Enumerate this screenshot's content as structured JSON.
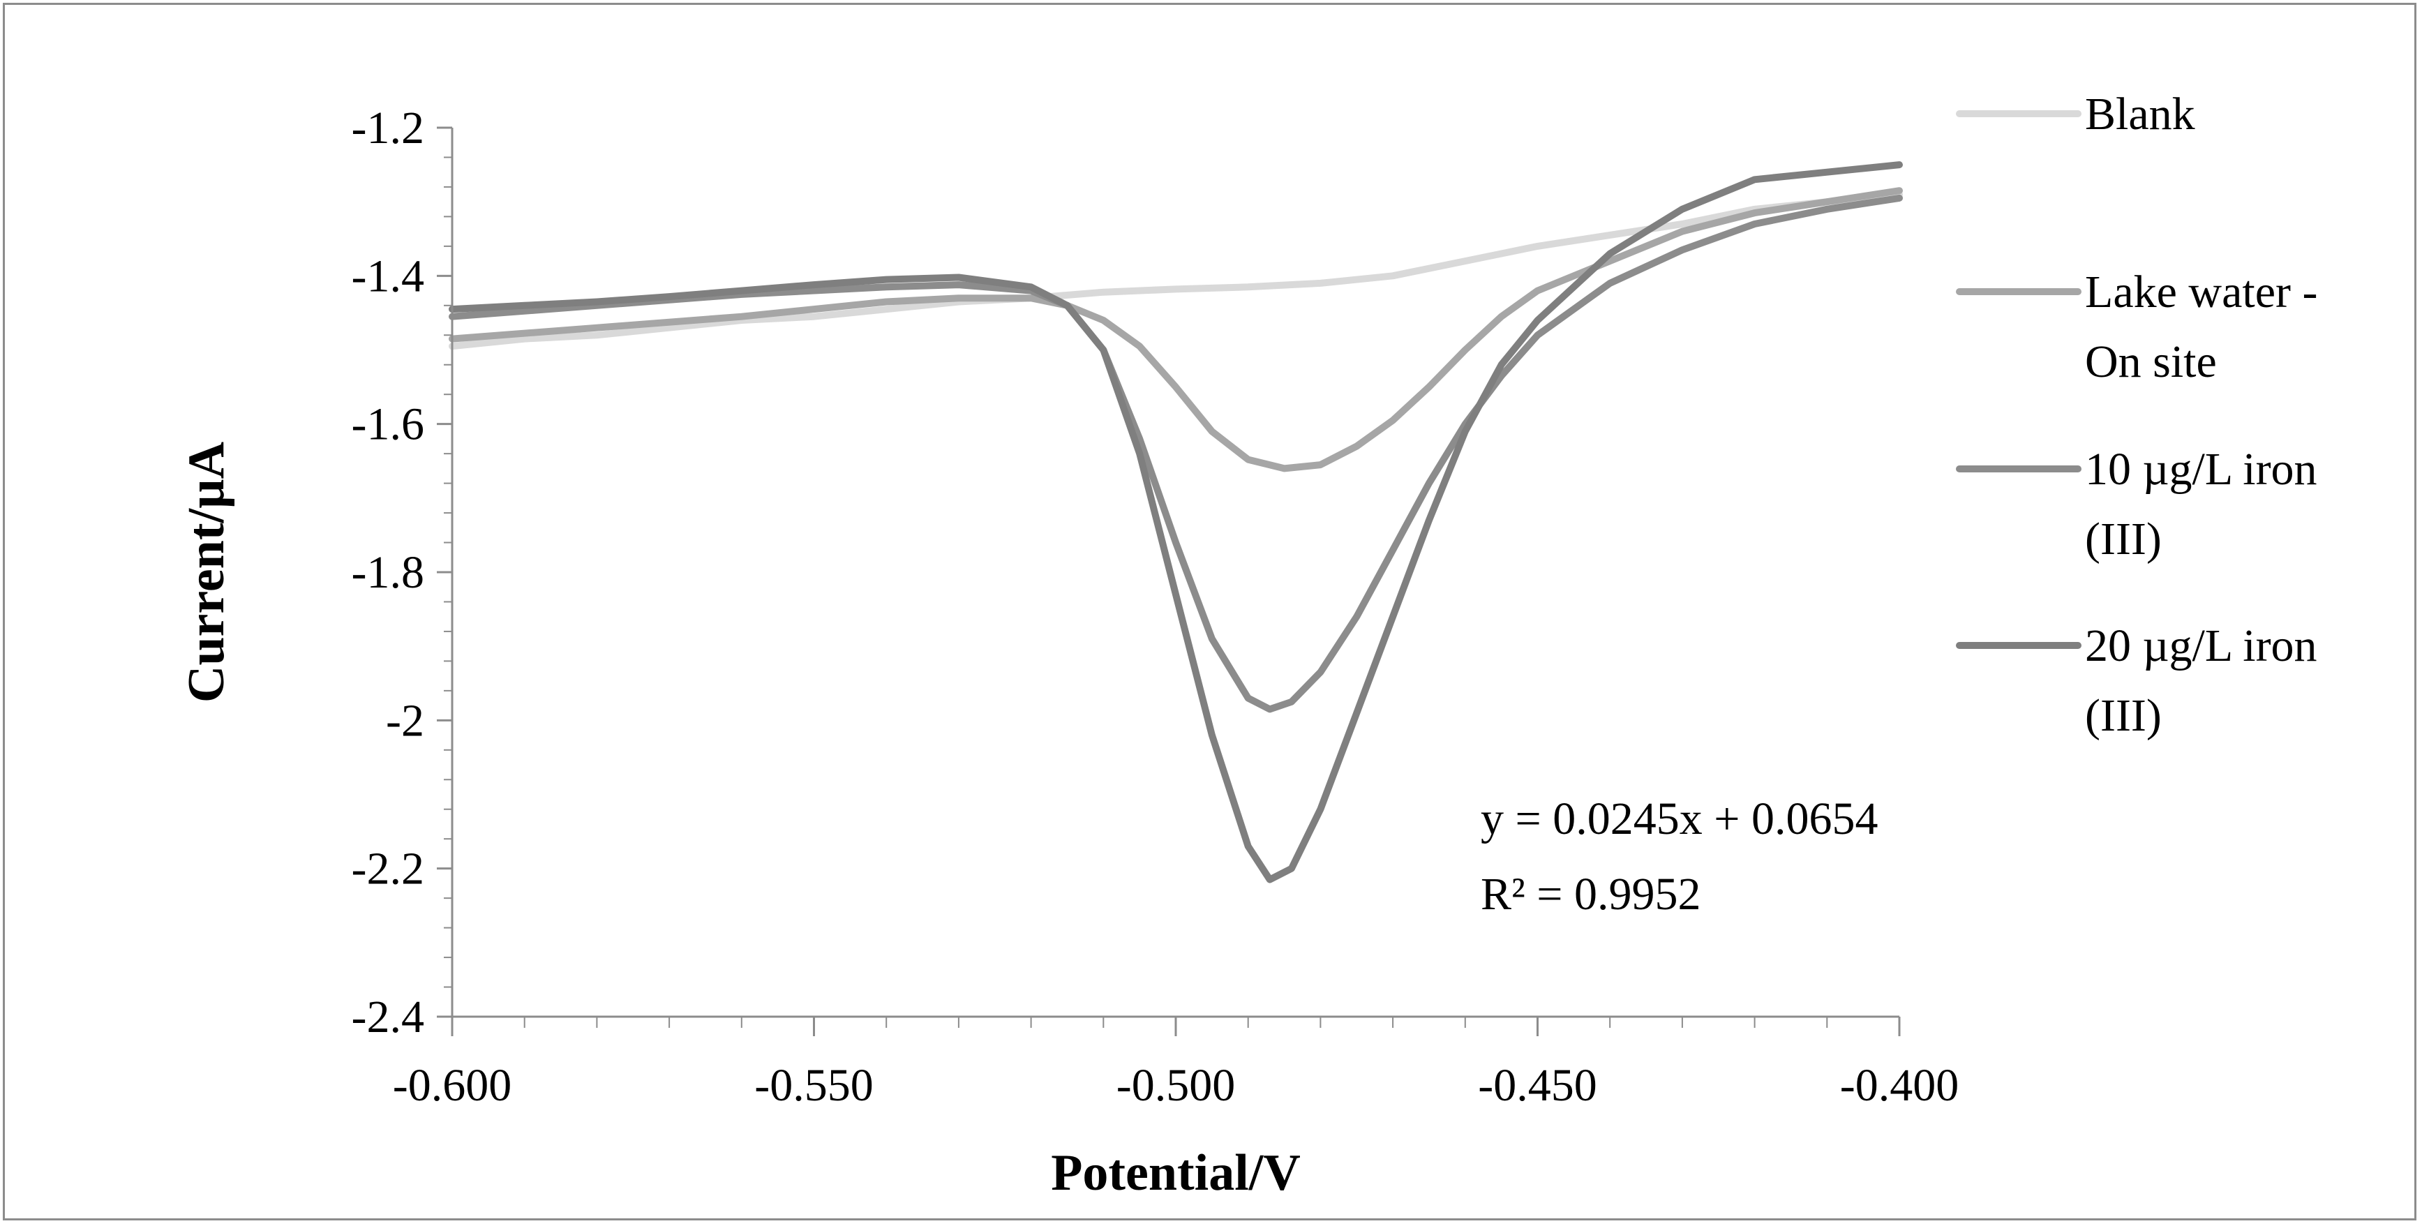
{
  "chart_data": {
    "type": "line",
    "title": "",
    "xlabel": "Potential/V",
    "ylabel": "Current/µA",
    "xlim": [
      -0.6,
      -0.4
    ],
    "ylim": [
      -2.4,
      -1.2
    ],
    "x_ticks": [
      -0.6,
      -0.55,
      -0.5,
      -0.45,
      -0.4
    ],
    "x_tick_labels": [
      "-0.600",
      "-0.550",
      "-0.500",
      "-0.450",
      "-0.400"
    ],
    "y_ticks": [
      -1.2,
      -1.4,
      -1.6,
      -1.8,
      -2.0,
      -2.2,
      -2.4
    ],
    "y_tick_labels": [
      "-1.2",
      "-1.4",
      "-1.6",
      "-1.8",
      "-2",
      "-2.2",
      "-2.4"
    ],
    "grid": false,
    "legend_position": "right",
    "series": [
      {
        "name": "Blank",
        "legend_lines": [
          "Blank"
        ],
        "color": "#d9d9d9",
        "x": [
          -0.6,
          -0.59,
          -0.58,
          -0.57,
          -0.56,
          -0.55,
          -0.54,
          -0.53,
          -0.52,
          -0.51,
          -0.5,
          -0.49,
          -0.48,
          -0.47,
          -0.46,
          -0.45,
          -0.44,
          -0.43,
          -0.42,
          -0.41,
          -0.4
        ],
        "y": [
          -1.495,
          -1.485,
          -1.48,
          -1.47,
          -1.46,
          -1.455,
          -1.445,
          -1.435,
          -1.43,
          -1.422,
          -1.418,
          -1.415,
          -1.41,
          -1.4,
          -1.38,
          -1.36,
          -1.345,
          -1.33,
          -1.31,
          -1.3,
          -1.29
        ]
      },
      {
        "name": "Lake water - On site",
        "legend_lines": [
          "Lake water -",
          "On site"
        ],
        "color": "#a6a6a6",
        "x": [
          -0.6,
          -0.58,
          -0.56,
          -0.54,
          -0.53,
          -0.52,
          -0.515,
          -0.51,
          -0.505,
          -0.5,
          -0.495,
          -0.49,
          -0.485,
          -0.48,
          -0.475,
          -0.47,
          -0.465,
          -0.46,
          -0.455,
          -0.45,
          -0.44,
          -0.43,
          -0.42,
          -0.41,
          -0.4
        ],
        "y": [
          -1.485,
          -1.47,
          -1.455,
          -1.435,
          -1.43,
          -1.43,
          -1.44,
          -1.46,
          -1.495,
          -1.55,
          -1.61,
          -1.648,
          -1.66,
          -1.655,
          -1.63,
          -1.595,
          -1.55,
          -1.5,
          -1.455,
          -1.42,
          -1.38,
          -1.34,
          -1.315,
          -1.3,
          -1.285
        ]
      },
      {
        "name": "10 µg/L iron (III)",
        "legend_lines": [
          "10 µg/L iron",
          "(III)"
        ],
        "color": "#8c8c8c",
        "x": [
          -0.6,
          -0.58,
          -0.56,
          -0.54,
          -0.53,
          -0.52,
          -0.515,
          -0.51,
          -0.505,
          -0.5,
          -0.495,
          -0.49,
          -0.487,
          -0.484,
          -0.48,
          -0.475,
          -0.47,
          -0.465,
          -0.46,
          -0.455,
          -0.45,
          -0.44,
          -0.43,
          -0.42,
          -0.41,
          -0.4
        ],
        "y": [
          -1.455,
          -1.44,
          -1.425,
          -1.415,
          -1.412,
          -1.42,
          -1.44,
          -1.5,
          -1.62,
          -1.76,
          -1.89,
          -1.97,
          -1.985,
          -1.975,
          -1.935,
          -1.86,
          -1.77,
          -1.68,
          -1.6,
          -1.535,
          -1.48,
          -1.41,
          -1.365,
          -1.33,
          -1.31,
          -1.295
        ]
      },
      {
        "name": "20 µg/L iron (III)",
        "legend_lines": [
          "20 µg/L iron",
          "(III)"
        ],
        "color": "#7f7f7f",
        "x": [
          -0.6,
          -0.59,
          -0.58,
          -0.57,
          -0.56,
          -0.55,
          -0.54,
          -0.53,
          -0.52,
          -0.515,
          -0.51,
          -0.505,
          -0.5,
          -0.495,
          -0.49,
          -0.487,
          -0.484,
          -0.48,
          -0.475,
          -0.47,
          -0.465,
          -0.46,
          -0.455,
          -0.45,
          -0.44,
          -0.43,
          -0.42,
          -0.41,
          -0.4
        ],
        "y": [
          -1.445,
          -1.44,
          -1.435,
          -1.428,
          -1.42,
          -1.412,
          -1.405,
          -1.402,
          -1.415,
          -1.44,
          -1.5,
          -1.64,
          -1.83,
          -2.02,
          -2.17,
          -2.215,
          -2.2,
          -2.12,
          -1.99,
          -1.86,
          -1.73,
          -1.61,
          -1.52,
          -1.46,
          -1.37,
          -1.31,
          -1.27,
          -1.26,
          -1.25
        ]
      }
    ],
    "annotations": [
      "y = 0.0245x + 0.0654",
      "R² = 0.9952"
    ]
  }
}
